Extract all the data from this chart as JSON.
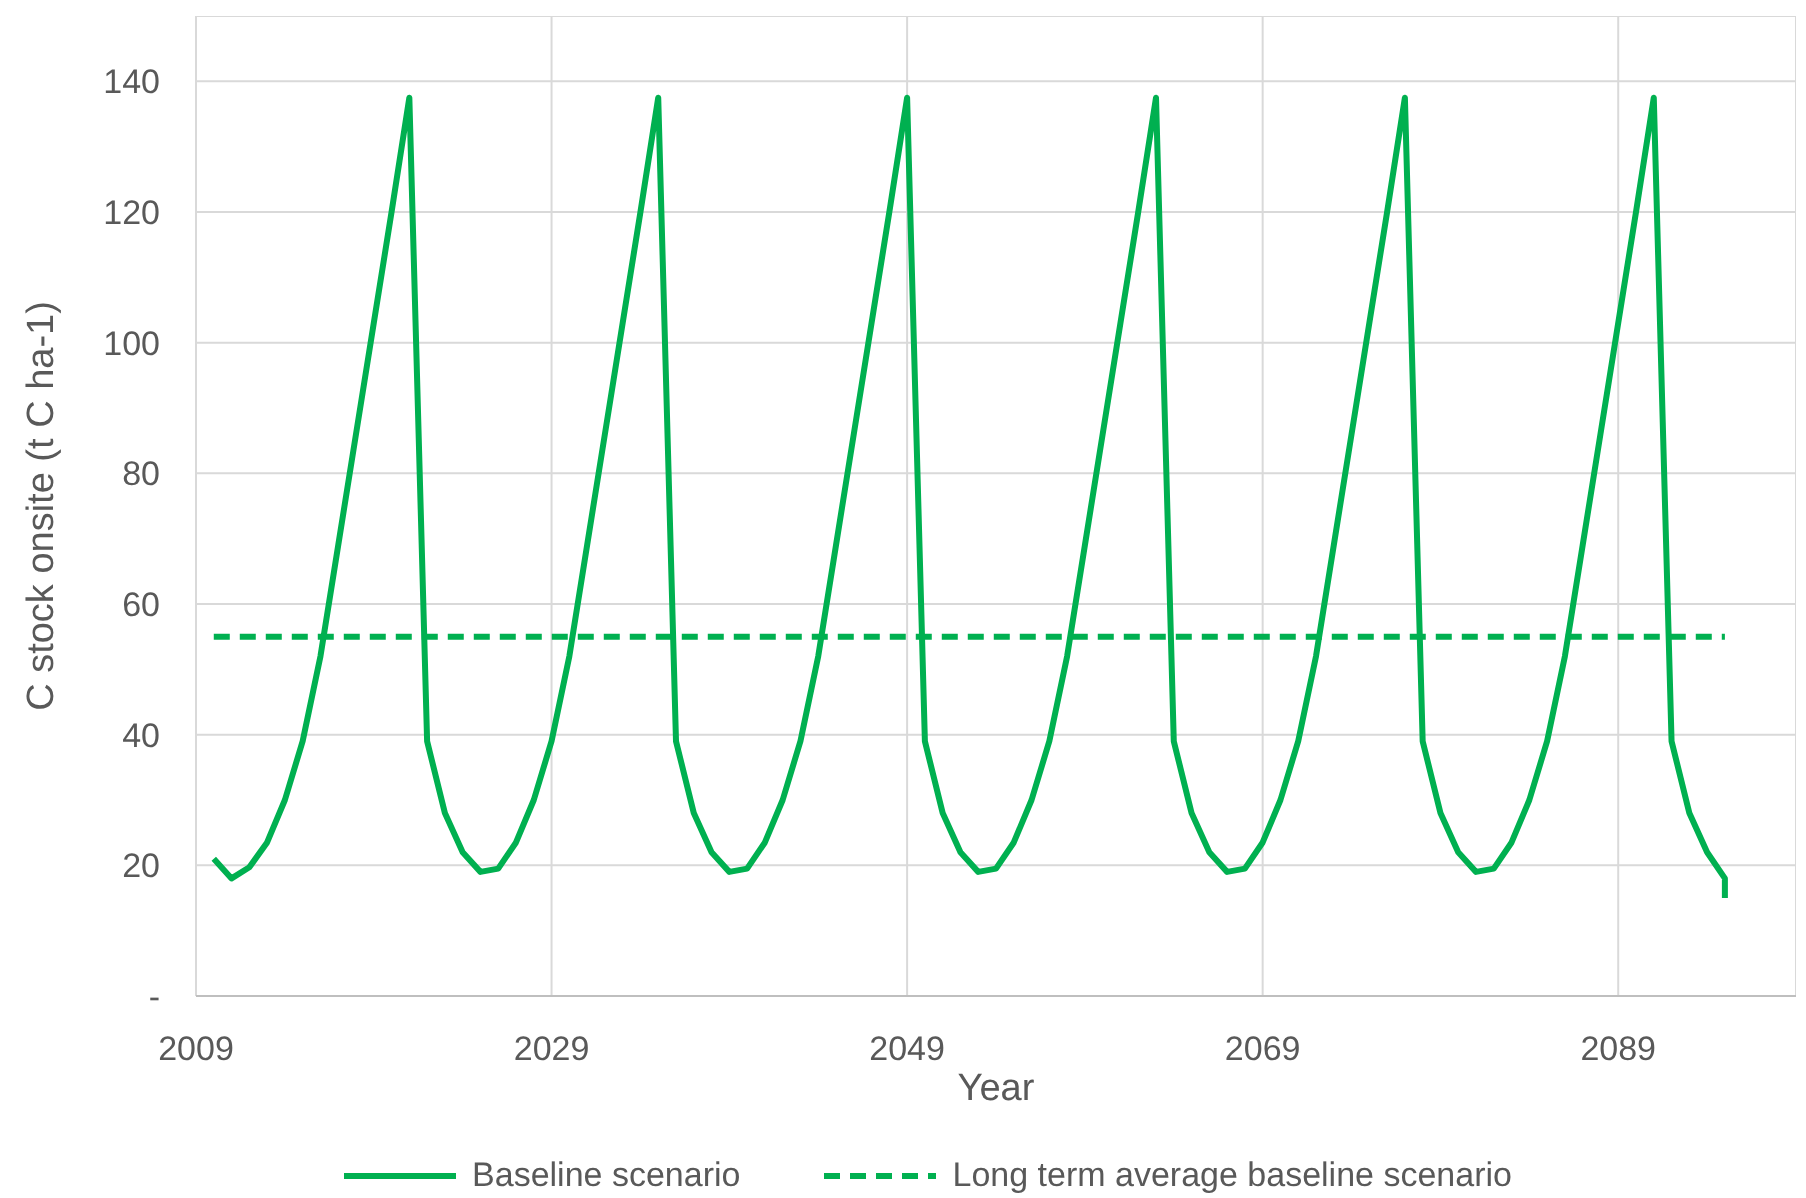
{
  "chart_data": {
    "type": "line",
    "xlabel": "Year",
    "ylabel": "C stock onsite (t C ha-1)",
    "xlim": [
      2009,
      2099
    ],
    "xticks": [
      2009,
      2029,
      2049,
      2069,
      2089
    ],
    "ylim": [
      0,
      150
    ],
    "yticks": [
      {
        "value": 0,
        "label": "-"
      },
      20,
      40,
      60,
      80,
      100,
      120,
      140
    ],
    "grid": true,
    "legend": "bottom",
    "marker": "none",
    "series": [
      {
        "name": "Baseline scenario",
        "color": "#00b050",
        "line_style": "solid",
        "x": [
          2010,
          2011,
          2012,
          2013,
          2014,
          2015,
          2016,
          2017,
          2018,
          2019,
          2020,
          2021,
          2022,
          2023,
          2024,
          2025,
          2026,
          2027,
          2028,
          2029,
          2030,
          2031,
          2032,
          2033,
          2034,
          2035,
          2036,
          2037,
          2038,
          2039,
          2040,
          2041,
          2042,
          2043,
          2044,
          2045,
          2046,
          2047,
          2048,
          2049,
          2050,
          2051,
          2052,
          2053,
          2054,
          2055,
          2056,
          2057,
          2058,
          2059,
          2060,
          2061,
          2062,
          2063,
          2064,
          2065,
          2066,
          2067,
          2068,
          2069,
          2070,
          2071,
          2072,
          2073,
          2074,
          2075,
          2076,
          2077,
          2078,
          2079,
          2080,
          2081,
          2082,
          2083,
          2084,
          2085,
          2086,
          2087,
          2088,
          2089,
          2090,
          2091,
          2092,
          2093,
          2094,
          2095,
          2095
        ],
        "values": [
          21,
          18,
          19.7,
          23.5,
          30,
          39,
          52,
          69,
          86,
          103,
          120,
          137.5,
          39,
          28,
          22,
          19,
          19.5,
          23.5,
          30,
          39,
          52,
          69,
          86,
          103,
          120,
          137.5,
          39,
          28,
          22,
          19,
          19.5,
          23.5,
          30,
          39,
          52,
          69,
          86,
          103,
          120,
          137.5,
          39,
          28,
          22,
          19,
          19.5,
          23.5,
          30,
          39,
          52,
          69,
          86,
          103,
          120,
          137.5,
          39,
          28,
          22,
          19,
          19.5,
          23.5,
          30,
          39,
          52,
          69,
          86,
          103,
          120,
          137.5,
          39,
          28,
          22,
          19,
          19.5,
          23.5,
          30,
          39,
          52,
          69,
          86,
          103,
          120,
          137.5,
          39,
          28,
          22,
          18,
          15
        ]
      },
      {
        "name": "Long term average baseline scenario",
        "color": "#00b050",
        "line_style": "dashed",
        "x": [
          2010,
          2095
        ],
        "values": [
          55,
          55
        ]
      }
    ]
  }
}
